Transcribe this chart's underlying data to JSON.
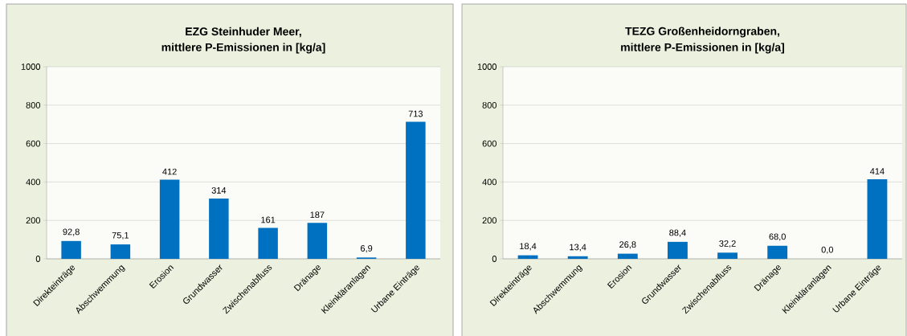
{
  "chart_data": [
    {
      "type": "bar",
      "title": "EZG Steinhuder Meer,",
      "subtitle": "mittlere P-Emissionen in [kg/a]",
      "categories": [
        "Direkteinträge",
        "Abschwemmung",
        "Erosion",
        "Grundwasser",
        "Zwischenabfluss",
        "Dränage",
        "Kleinkläranlagen",
        "Urbane Einträge"
      ],
      "values": [
        92.8,
        75.1,
        412,
        314,
        161,
        187,
        6.9,
        713
      ],
      "value_labels": [
        "92,8",
        "75,1",
        "412",
        "314",
        "161",
        "187",
        "6,9",
        "713"
      ],
      "color": "#0070c0",
      "ylim": [
        0,
        1000
      ],
      "yticks": [
        0,
        200,
        400,
        600,
        800,
        1000
      ],
      "grid": "y"
    },
    {
      "type": "bar",
      "title": "TEZG Großenheidorngraben,",
      "subtitle": "mittlere P-Emissionen in [kg/a]",
      "categories": [
        "Direkteinträge",
        "Abschwemmung",
        "Erosion",
        "Grundwasser",
        "Zwischenabfluss",
        "Dränage",
        "Kleinkläranlagen",
        "Urbane Einträge"
      ],
      "values": [
        18.4,
        13.4,
        26.8,
        88.4,
        32.2,
        68.0,
        0.0,
        414
      ],
      "value_labels": [
        "18,4",
        "13,4",
        "26,8",
        "88,4",
        "32,2",
        "68,0",
        "0,0",
        "414"
      ],
      "color": "#0070c0",
      "ylim": [
        0,
        1000
      ],
      "yticks": [
        0,
        200,
        400,
        600,
        800,
        1000
      ],
      "grid": "y"
    }
  ]
}
